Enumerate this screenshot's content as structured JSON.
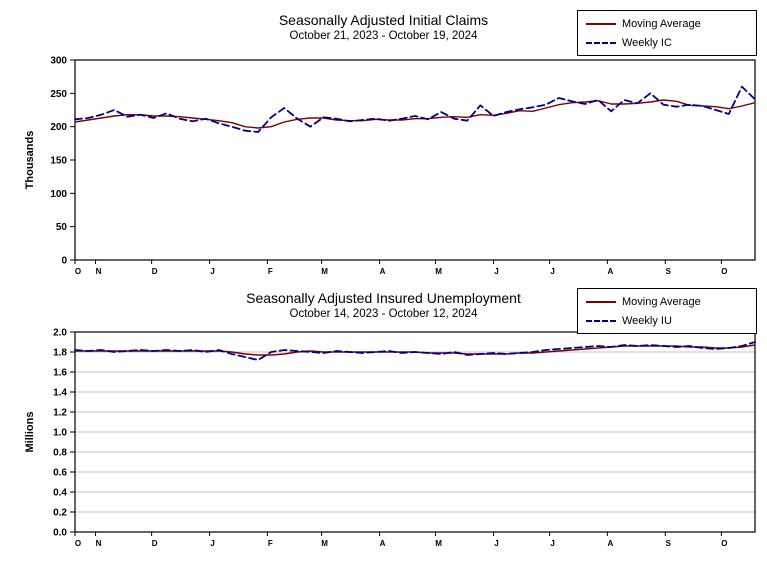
{
  "colors": {
    "moving_average": "#800000",
    "weekly": "#00008b",
    "grid": "#c3c3c3",
    "axis": "#000000"
  },
  "chart_data": [
    {
      "type": "line",
      "title": "Seasonally Adjusted Initial Claims",
      "subtitle": "October 21, 2023 - October 19, 2024",
      "ylabel": "Thousands",
      "ylim": [
        0,
        300
      ],
      "ytick_labels": [
        "0",
        "50",
        "100",
        "150",
        "200",
        "250",
        "300"
      ],
      "xtick_labels": [
        "O",
        "N",
        "D",
        "J",
        "F",
        "M",
        "A",
        "M",
        "J",
        "J",
        "A",
        "S",
        "O"
      ],
      "xtick_weeks": [
        0,
        1.57,
        5.86,
        10.29,
        14.71,
        18.86,
        23.29,
        27.57,
        32,
        36.29,
        40.71,
        45.14,
        49.43
      ],
      "weeks_total": 52,
      "grid": false,
      "legend_position": "top-right",
      "series": [
        {
          "name": "Moving Average",
          "style": "solid",
          "color_key": "moving_average",
          "values": [
            207,
            210,
            213,
            216,
            218,
            218,
            216,
            216,
            215,
            213,
            211,
            209,
            206,
            200,
            198,
            200,
            207,
            211,
            213,
            213,
            210,
            209,
            209,
            211,
            210,
            210,
            212,
            212,
            214,
            215,
            214,
            218,
            217,
            220,
            224,
            223,
            228,
            233,
            236,
            237,
            239,
            234,
            234,
            235,
            237,
            240,
            238,
            232,
            231,
            230,
            227,
            231,
            236
          ]
        },
        {
          "name": "Weekly IC",
          "style": "dashed",
          "color_key": "weekly",
          "values": [
            211,
            213,
            218,
            225,
            215,
            218,
            213,
            220,
            212,
            208,
            212,
            205,
            200,
            194,
            192,
            214,
            228,
            212,
            200,
            214,
            212,
            208,
            210,
            212,
            209,
            212,
            216,
            211,
            222,
            212,
            209,
            232,
            216,
            222,
            226,
            229,
            233,
            243,
            238,
            234,
            240,
            223,
            240,
            235,
            250,
            233,
            230,
            233,
            231,
            225,
            219,
            260,
            241
          ]
        }
      ]
    },
    {
      "type": "line",
      "title": "Seasonally Adjusted Insured Unemployment",
      "subtitle": "October 14, 2023 - October 12, 2024",
      "ylabel": "Millions",
      "ylim": [
        0,
        2.0
      ],
      "ytick_labels": [
        "0.0",
        "0.2",
        "0.4",
        "0.6",
        "0.8",
        "1.0",
        "1.2",
        "1.4",
        "1.6",
        "1.8",
        "2.0"
      ],
      "xtick_labels": [
        "O",
        "N",
        "D",
        "J",
        "F",
        "M",
        "A",
        "M",
        "J",
        "J",
        "A",
        "S",
        "O"
      ],
      "xtick_weeks": [
        0,
        1.57,
        5.86,
        10.29,
        14.71,
        18.86,
        23.29,
        27.57,
        32,
        36.29,
        40.71,
        45.14,
        49.43
      ],
      "weeks_total": 52,
      "grid": true,
      "legend_position": "top-right",
      "series": [
        {
          "name": "Moving Average",
          "style": "solid",
          "color_key": "moving_average",
          "values": [
            1.81,
            1.81,
            1.81,
            1.81,
            1.81,
            1.81,
            1.81,
            1.81,
            1.81,
            1.81,
            1.81,
            1.81,
            1.8,
            1.78,
            1.77,
            1.77,
            1.78,
            1.8,
            1.81,
            1.8,
            1.8,
            1.8,
            1.8,
            1.8,
            1.8,
            1.8,
            1.8,
            1.79,
            1.79,
            1.79,
            1.78,
            1.78,
            1.78,
            1.78,
            1.79,
            1.79,
            1.8,
            1.81,
            1.82,
            1.83,
            1.84,
            1.85,
            1.86,
            1.86,
            1.86,
            1.86,
            1.86,
            1.85,
            1.85,
            1.84,
            1.84,
            1.85,
            1.87
          ]
        },
        {
          "name": "Weekly IU",
          "style": "dashed",
          "color_key": "weekly",
          "values": [
            1.82,
            1.81,
            1.82,
            1.8,
            1.81,
            1.82,
            1.81,
            1.82,
            1.81,
            1.82,
            1.8,
            1.82,
            1.78,
            1.75,
            1.72,
            1.8,
            1.82,
            1.81,
            1.8,
            1.79,
            1.81,
            1.8,
            1.79,
            1.8,
            1.81,
            1.79,
            1.8,
            1.79,
            1.78,
            1.8,
            1.77,
            1.78,
            1.79,
            1.78,
            1.79,
            1.8,
            1.82,
            1.83,
            1.84,
            1.85,
            1.86,
            1.85,
            1.87,
            1.86,
            1.87,
            1.86,
            1.85,
            1.86,
            1.84,
            1.83,
            1.84,
            1.86,
            1.9
          ]
        }
      ]
    }
  ]
}
